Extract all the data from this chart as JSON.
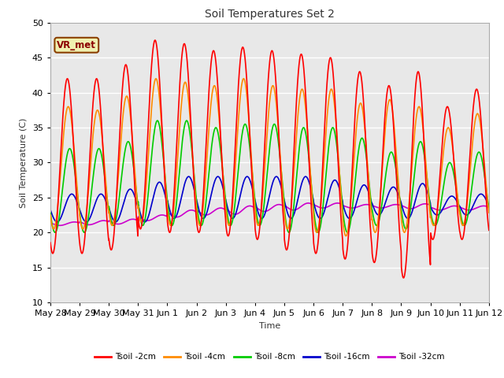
{
  "title": "Soil Temperatures Set 2",
  "xlabel": "Time",
  "ylabel": "Soil Temperature (C)",
  "ylim": [
    10,
    50
  ],
  "background_color": "#e8e8e8",
  "grid_color": "white",
  "annotation_text": "VR_met",
  "annotation_color": "#8B0000",
  "annotation_bg": "#f0f0b0",
  "annotation_border": "#8B4000",
  "series_colors": [
    "#ff0000",
    "#ff8c00",
    "#00cc00",
    "#0000cc",
    "#cc00cc"
  ],
  "series_lw": [
    1.2,
    1.2,
    1.2,
    1.2,
    1.2
  ],
  "series_labels": [
    "Tsoil -2cm",
    "Tsoil -4cm",
    "Tsoil -8cm",
    "Tsoil -16cm",
    "Tsoil -32cm"
  ],
  "tick_labels": [
    "May 28",
    "May 29",
    "May 30",
    "May 31",
    "Jun 1",
    "Jun 2",
    "Jun 3",
    "Jun 4",
    "Jun 5",
    "Jun 6",
    "Jun 7",
    "Jun 8",
    "Jun 9",
    "Jun 10",
    "Jun 11",
    "Jun 12"
  ],
  "tick_positions": [
    0,
    1,
    2,
    3,
    4,
    5,
    6,
    7,
    8,
    9,
    10,
    11,
    12,
    13,
    14,
    15
  ],
  "yticks": [
    10,
    15,
    20,
    25,
    30,
    35,
    40,
    45,
    50
  ],
  "day_peaks_2": [
    42,
    42,
    44,
    47.5,
    47,
    46,
    46.5,
    46,
    45.5,
    45,
    43,
    41,
    43,
    38,
    40.5
  ],
  "day_troughs_2": [
    17,
    17,
    17.5,
    20.5,
    20,
    20,
    19.5,
    19,
    17.5,
    17,
    16.2,
    15.7,
    13.5,
    19,
    19
  ],
  "day_peaks_4": [
    38,
    37.5,
    39.5,
    42,
    41.5,
    41,
    42,
    41,
    40.5,
    40.5,
    38.5,
    39,
    38,
    35,
    37
  ],
  "day_troughs_4": [
    20.5,
    20.5,
    21,
    21.5,
    21,
    21,
    21,
    21,
    20.5,
    20,
    19.5,
    20,
    20,
    21,
    21
  ],
  "day_peaks_8": [
    32,
    32,
    33,
    36,
    36,
    35,
    35.5,
    35.5,
    35,
    35,
    33.5,
    31.5,
    33,
    30,
    31.5
  ],
  "day_troughs_8": [
    20,
    20,
    21,
    21,
    21,
    21,
    21,
    21,
    20,
    20,
    20,
    21,
    20.5,
    21,
    21
  ],
  "day_peaks_16": [
    25.5,
    25.5,
    26.2,
    27.2,
    28,
    28,
    28,
    28,
    28,
    27.5,
    26.8,
    26.5,
    27,
    25.2,
    25.5
  ],
  "day_troughs_16": [
    21.5,
    21.5,
    21.5,
    21.5,
    22,
    22,
    22,
    22,
    22,
    22,
    22,
    22.5,
    22,
    22.5,
    22.5
  ],
  "day_peaks_32": [
    21.5,
    21.7,
    21.9,
    22.5,
    23.2,
    23.5,
    23.8,
    24,
    24.2,
    24.2,
    24,
    24,
    24.1,
    23.8,
    23.8
  ],
  "day_troughs_32": [
    21.0,
    21.1,
    21.2,
    21.7,
    22.2,
    22.5,
    22.6,
    23.0,
    23.2,
    23.5,
    23.5,
    23.5,
    23.4,
    23.2,
    23.2
  ],
  "phase_peaks": [
    0.58,
    0.61,
    0.66,
    0.73,
    0.82
  ]
}
